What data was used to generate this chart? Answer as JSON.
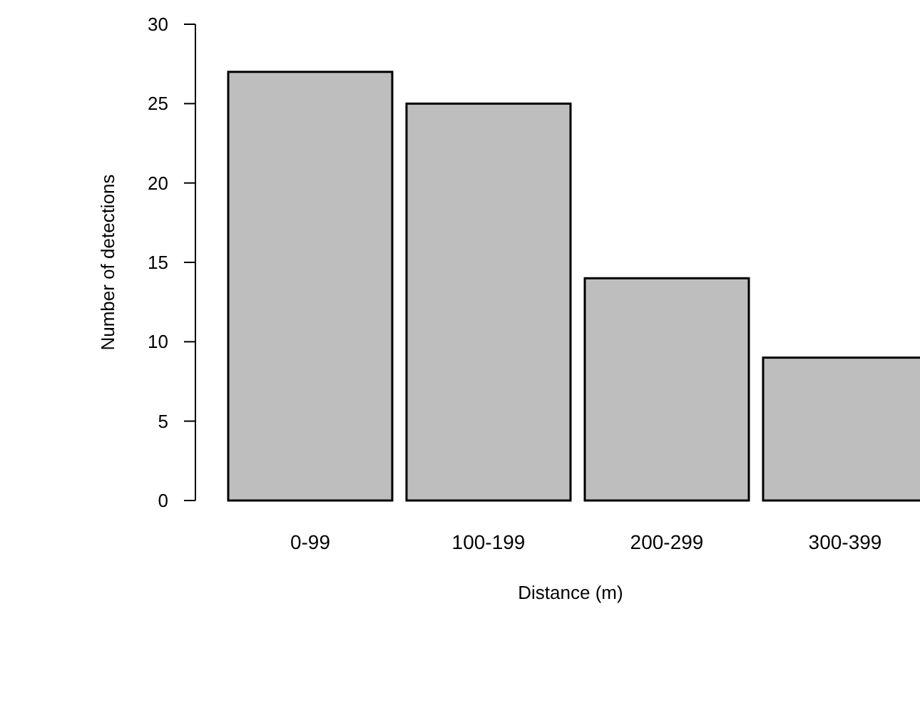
{
  "chart_data": {
    "type": "bar",
    "xlabel": "Distance (m)",
    "ylabel": "Number of detections",
    "categories": [
      "0-99",
      "100-199",
      "200-299",
      "300-399"
    ],
    "values": [
      27,
      25,
      14,
      9
    ],
    "color": "#bebebe",
    "ylim": [
      0,
      30
    ],
    "yticks": [
      0,
      5,
      10,
      15,
      20,
      25,
      30
    ],
    "grid": false
  }
}
